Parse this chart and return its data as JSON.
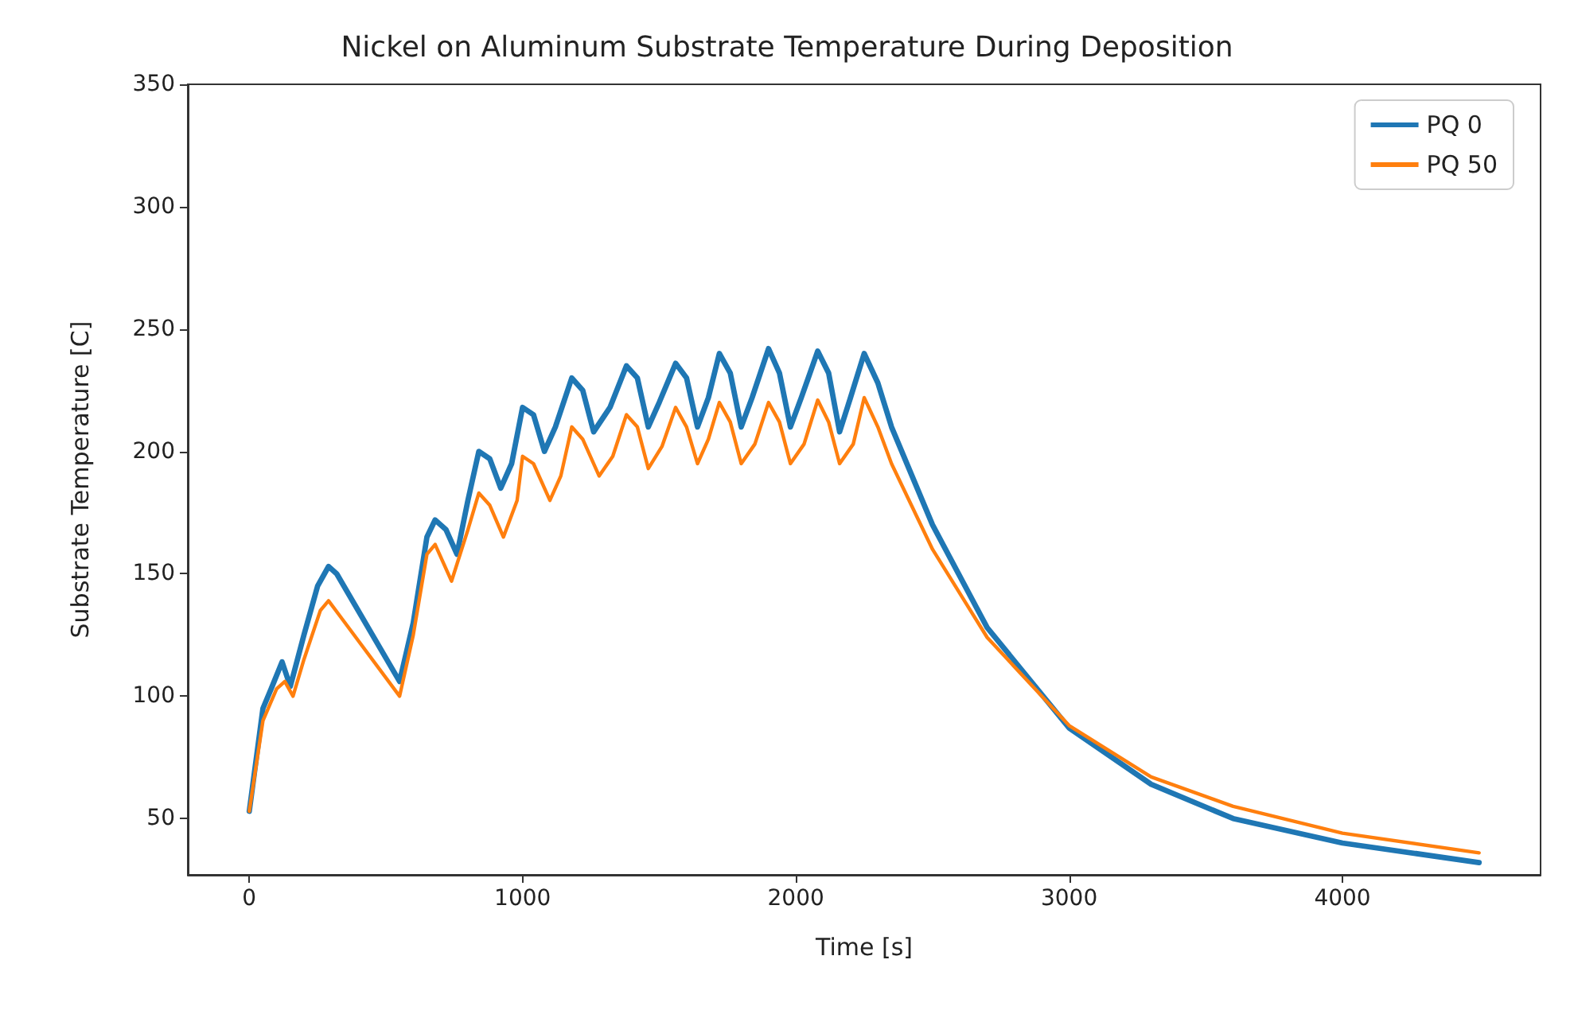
{
  "chart_data": {
    "type": "line",
    "title": "Nickel on Aluminum Substrate Temperature During Deposition",
    "xlabel": "Time [s]",
    "ylabel": "Substrate Temperature [C]",
    "xlim": [
      -225,
      4725
    ],
    "xticks": [
      0,
      1000,
      2000,
      3000,
      4000
    ],
    "ylim": [
      27,
      350
    ],
    "yticks": [
      50,
      100,
      150,
      200,
      250,
      300,
      350
    ],
    "grid": false,
    "legend": "top right",
    "marker": "none",
    "line_style": "solid",
    "series": [
      {
        "name": "PQ 0",
        "color": "#1f77b4",
        "x": [
          0,
          50,
          80,
          120,
          150,
          200,
          250,
          290,
          320,
          550,
          600,
          650,
          680,
          720,
          760,
          800,
          840,
          880,
          920,
          960,
          1000,
          1040,
          1080,
          1120,
          1180,
          1220,
          1260,
          1320,
          1380,
          1420,
          1460,
          1500,
          1560,
          1600,
          1640,
          1680,
          1720,
          1760,
          1800,
          1840,
          1900,
          1940,
          1980,
          2020,
          2080,
          2120,
          2160,
          2200,
          2250,
          2300,
          2350,
          2500,
          2700,
          3000,
          3300,
          3600,
          4000,
          4500
        ],
        "values": [
          53,
          95,
          103,
          114,
          104,
          125,
          145,
          153,
          150,
          106,
          130,
          165,
          172,
          168,
          158,
          180,
          200,
          197,
          185,
          195,
          218,
          215,
          200,
          210,
          230,
          225,
          208,
          218,
          235,
          230,
          210,
          220,
          236,
          230,
          210,
          222,
          240,
          232,
          210,
          222,
          242,
          232,
          210,
          222,
          241,
          232,
          208,
          222,
          240,
          228,
          210,
          170,
          128,
          87,
          64,
          50,
          40,
          32
        ]
      },
      {
        "name": "PQ 50",
        "color": "#ff7f0e",
        "x": [
          0,
          50,
          100,
          130,
          160,
          200,
          260,
          290,
          330,
          550,
          600,
          650,
          680,
          740,
          800,
          840,
          880,
          930,
          980,
          1000,
          1040,
          1100,
          1140,
          1180,
          1220,
          1280,
          1330,
          1380,
          1420,
          1460,
          1510,
          1560,
          1600,
          1640,
          1680,
          1720,
          1760,
          1800,
          1850,
          1900,
          1940,
          1980,
          2030,
          2080,
          2120,
          2160,
          2210,
          2250,
          2300,
          2350,
          2500,
          2700,
          3000,
          3300,
          3600,
          4000,
          4500
        ],
        "values": [
          53,
          90,
          103,
          106,
          100,
          115,
          135,
          139,
          133,
          100,
          125,
          158,
          162,
          147,
          168,
          183,
          178,
          165,
          180,
          198,
          195,
          180,
          190,
          210,
          205,
          190,
          198,
          215,
          210,
          193,
          202,
          218,
          210,
          195,
          205,
          220,
          212,
          195,
          203,
          220,
          212,
          195,
          203,
          221,
          212,
          195,
          203,
          222,
          210,
          195,
          160,
          124,
          88,
          67,
          55,
          44,
          36
        ]
      }
    ]
  }
}
